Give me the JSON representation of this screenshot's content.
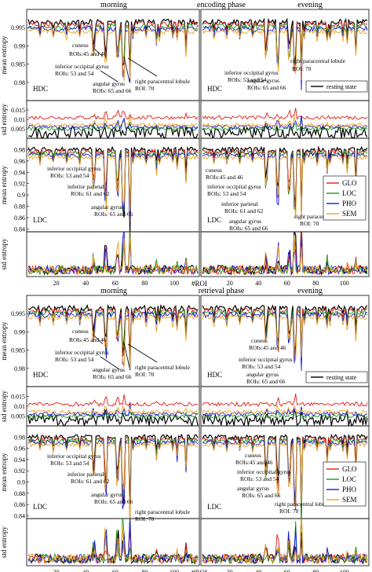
{
  "chart_data": {
    "type": "line",
    "series_colors": {
      "resting": "#000000",
      "GLO": "#e01a1a",
      "LOC": "#1a9a1a",
      "PHO": "#1a1ae0",
      "SEM": "#f0a020"
    },
    "phases": [
      {
        "name": "encoding phase",
        "sessions": [
          "morning",
          "evening"
        ],
        "panels": [
          {
            "kind": "HDC mean",
            "tag": "HDC",
            "ylabel": "mean entropy",
            "ylim": [
              0.975,
              1.0
            ],
            "ticks": [
              "0.975",
              "0.98",
              "0.985",
              "0.99",
              "0.995"
            ]
          },
          {
            "kind": "HDC std",
            "ylabel": "std entropy",
            "ylim": [
              0,
              0.02
            ],
            "ticks": [
              "0",
              "0.005",
              "0.01",
              "0.015"
            ]
          },
          {
            "kind": "LDC mean",
            "tag": "LDC",
            "ylabel": "mean entropy",
            "ylim": [
              0.835,
              1.0
            ],
            "ticks": [
              "0.84",
              "0.86",
              "0.88",
              "0.9",
              "0.92",
              "0.94",
              "0.96",
              "0.98"
            ]
          },
          {
            "kind": "LDC std",
            "ylabel": "std entropy",
            "ylim": [
              0,
              0.2
            ],
            "ticks": []
          }
        ],
        "hdc_annotations_left": [
          "cuneus",
          "ROIs:45 and 46",
          "inferior occipital gyrus",
          "ROIs: 53 and 54",
          "angular gyrus",
          "ROIs: 65 and 66",
          "right paracentral lobule",
          "ROI: 70"
        ],
        "hdc_annotations_right": [
          "right paracentral lobule",
          "ROI: 70",
          "inferior occipital gyrus",
          "ROIs: 53 and 54",
          "angular gyrus",
          "ROIs: 65 and 66"
        ],
        "ldc_annotations_left": [
          "inferior occipital gyrus",
          "ROIs: 53 and 54",
          "inferior parietal",
          "ROIs: 61 and 62",
          "angular gyrus",
          "ROIs: 65 and 66"
        ],
        "ldc_annotations_right": [
          "cuneus",
          "ROIs:45 and 46",
          "inferior occipital gyrus",
          "ROIs: 53 and 54",
          "inferior parietal",
          "ROIs: 61 and 62",
          "angular gyrus",
          "ROIs: 65 and 66",
          "right paracentral lobule",
          "ROI: 70"
        ]
      },
      {
        "name": "retrieval phase",
        "sessions": [
          "morning",
          "evening"
        ],
        "panels": [
          {
            "kind": "HDC mean",
            "tag": "HDC",
            "ylabel": "mean entropy",
            "ylim": [
              0.975,
              1.0
            ],
            "ticks": [
              "0.975",
              "0.98",
              "0.985",
              "0.99",
              "0.995"
            ]
          },
          {
            "kind": "HDC std",
            "ylabel": "std entropy",
            "ylim": [
              0,
              0.02
            ],
            "ticks": [
              "0",
              "0.005",
              "0.01",
              "0.015"
            ]
          },
          {
            "kind": "LDC mean",
            "tag": "LDC",
            "ylabel": "mean entropy",
            "ylim": [
              0.835,
              1.0
            ],
            "ticks": [
              "0.84",
              "0.86",
              "0.88",
              "0.9",
              "0.92",
              "0.94",
              "0.96",
              "0.98"
            ]
          },
          {
            "kind": "LDC std",
            "ylabel": "std entropy",
            "ylim": [
              0,
              0.2
            ],
            "ticks": []
          }
        ],
        "hdc_annotations_left": [
          "cuneus",
          "ROIs:45 and 46",
          "inferior occipital gyrus",
          "ROIs: 53 and 54",
          "angular gyrus",
          "ROIs: 65 and 66",
          "right paracentral lobule",
          "ROI: 70"
        ],
        "hdc_annotations_right": [
          "cuneus",
          "ROIs:45 and 46",
          "inferior occipital gyrus",
          "ROIs: 53 and 54",
          "angular gyrus",
          "ROIs: 65 and 66"
        ],
        "ldc_annotations_left": [
          "inferior occipital gyrus",
          "ROIs: 53 and 54",
          "inferior parietal",
          "ROIs: 61 and 62",
          "angular gyrus",
          "ROIs: 65 and 66",
          "right paracentral lobule",
          "ROI: 70"
        ],
        "ldc_annotations_right": [
          "cuneus",
          "ROIs:45 and 46",
          "inferior occipital gyrus",
          "ROIs: 53 and 54",
          "angular gyrus",
          "ROIs: 65 and 66",
          "right paracentral lobule",
          "ROI: 70"
        ]
      }
    ],
    "x_ticks": [
      "20",
      "40",
      "60",
      "80",
      "100"
    ],
    "x_max_roi": 116,
    "xlabel": "#ROI",
    "legend_resting": "resting state",
    "legend_groups": [
      "GLO",
      "LOC",
      "PHO",
      "SEM"
    ],
    "grid": false,
    "note": "series values are approximate per-ROI entropy reconstructions"
  }
}
